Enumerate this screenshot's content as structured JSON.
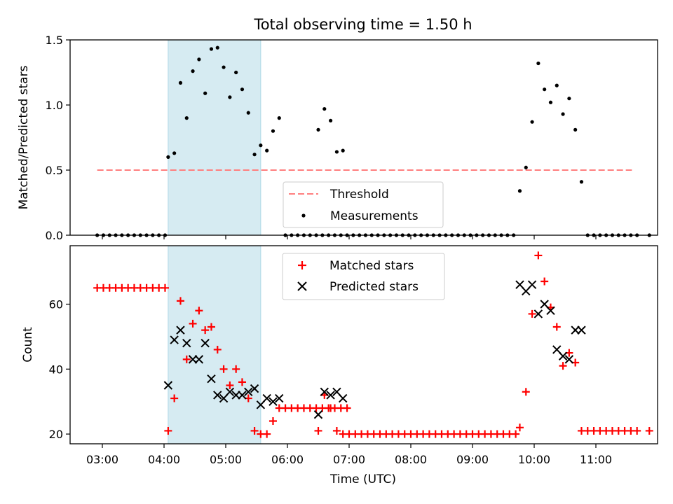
{
  "title": "Total observing time = 1.50 h",
  "colors": {
    "threshold": "#ff7f7f",
    "measurement": "#000000",
    "matched": "#ff0000",
    "predicted": "#000000",
    "highlight": "#add8e6"
  },
  "chart_data": [
    {
      "type": "scatter",
      "ylabel": "Matched/Predicted stars",
      "ylim": [
        0,
        1.5
      ],
      "yticks": [
        "0.0",
        "0.5",
        "1.0",
        "1.5"
      ],
      "highlight_span": [
        "04:04",
        "05:34"
      ],
      "threshold": {
        "value": 0.5,
        "x_range": [
          "02:55",
          "11:35"
        ]
      },
      "legend": {
        "placement": "lower-center",
        "entries": [
          "Threshold",
          "Measurements"
        ]
      },
      "series": [
        {
          "name": "Measurements",
          "marker": "dot",
          "points": [
            [
              "02:55",
              0
            ],
            [
              "03:01",
              0
            ],
            [
              "03:07",
              0
            ],
            [
              "03:13",
              0
            ],
            [
              "03:19",
              0
            ],
            [
              "03:25",
              0
            ],
            [
              "03:31",
              0
            ],
            [
              "03:37",
              0
            ],
            [
              "03:43",
              0
            ],
            [
              "03:49",
              0
            ],
            [
              "03:55",
              0
            ],
            [
              "04:01",
              0
            ],
            [
              "04:04",
              0.6
            ],
            [
              "04:10",
              0.63
            ],
            [
              "04:16",
              1.17
            ],
            [
              "04:22",
              0.9
            ],
            [
              "04:28",
              1.26
            ],
            [
              "04:34",
              1.35
            ],
            [
              "04:40",
              1.09
            ],
            [
              "04:46",
              1.43
            ],
            [
              "04:52",
              1.44
            ],
            [
              "04:58",
              1.29
            ],
            [
              "05:04",
              1.06
            ],
            [
              "05:10",
              1.25
            ],
            [
              "05:16",
              1.12
            ],
            [
              "05:22",
              0.94
            ],
            [
              "05:28",
              0.62
            ],
            [
              "05:34",
              0.69
            ],
            [
              "05:40",
              0.65
            ],
            [
              "05:46",
              0.8
            ],
            [
              "05:52",
              0.9
            ],
            [
              "05:58",
              0
            ],
            [
              "06:04",
              0
            ],
            [
              "06:10",
              0
            ],
            [
              "06:16",
              0
            ],
            [
              "06:22",
              0
            ],
            [
              "06:28",
              0
            ],
            [
              "06:34",
              0
            ],
            [
              "06:40",
              0
            ],
            [
              "06:46",
              0
            ],
            [
              "06:52",
              0
            ],
            [
              "06:58",
              0
            ],
            [
              "07:04",
              0
            ],
            [
              "07:10",
              0
            ],
            [
              "07:16",
              0
            ],
            [
              "07:22",
              0
            ],
            [
              "07:28",
              0
            ],
            [
              "07:34",
              0
            ],
            [
              "07:40",
              0
            ],
            [
              "07:46",
              0
            ],
            [
              "07:52",
              0
            ],
            [
              "07:58",
              0
            ],
            [
              "08:04",
              0
            ],
            [
              "08:10",
              0
            ],
            [
              "08:16",
              0
            ],
            [
              "08:22",
              0
            ],
            [
              "06:30",
              0.81
            ],
            [
              "06:36",
              0.97
            ],
            [
              "06:42",
              0.88
            ],
            [
              "06:48",
              0.64
            ],
            [
              "06:54",
              0.65
            ],
            [
              "08:28",
              0
            ],
            [
              "08:34",
              0
            ],
            [
              "08:40",
              0
            ],
            [
              "08:46",
              0
            ],
            [
              "08:52",
              0
            ],
            [
              "08:58",
              0
            ],
            [
              "09:04",
              0
            ],
            [
              "09:10",
              0
            ],
            [
              "09:16",
              0
            ],
            [
              "09:22",
              0
            ],
            [
              "09:28",
              0
            ],
            [
              "09:34",
              0
            ],
            [
              "09:40",
              0
            ],
            [
              "09:46",
              0.34
            ],
            [
              "09:52",
              0.52
            ],
            [
              "09:58",
              0.87
            ],
            [
              "10:04",
              1.32
            ],
            [
              "10:10",
              1.12
            ],
            [
              "10:16",
              1.02
            ],
            [
              "10:22",
              1.15
            ],
            [
              "10:28",
              0.93
            ],
            [
              "10:34",
              1.05
            ],
            [
              "10:40",
              0.81
            ],
            [
              "10:46",
              0.41
            ],
            [
              "10:52",
              0
            ],
            [
              "10:58",
              0
            ],
            [
              "11:04",
              0
            ],
            [
              "11:10",
              0
            ],
            [
              "11:16",
              0
            ],
            [
              "11:22",
              0
            ],
            [
              "11:28",
              0
            ],
            [
              "11:34",
              0
            ],
            [
              "11:40",
              0
            ],
            [
              "11:52",
              0
            ]
          ]
        }
      ]
    },
    {
      "type": "scatter",
      "xlabel": "Time (UTC)",
      "ylabel": "Count",
      "ylim": [
        17,
        78
      ],
      "yticks": [
        "20",
        "40",
        "60"
      ],
      "xticks": [
        "03:00",
        "04:00",
        "05:00",
        "06:00",
        "07:00",
        "08:00",
        "09:00",
        "10:00",
        "11:00"
      ],
      "highlight_span": [
        "04:04",
        "05:34"
      ],
      "legend": {
        "placement": "upper-center",
        "entries": [
          "Matched stars",
          "Predicted stars"
        ]
      },
      "series": [
        {
          "name": "Matched stars",
          "marker": "plus",
          "points": [
            [
              "02:55",
              65
            ],
            [
              "03:01",
              65
            ],
            [
              "03:07",
              65
            ],
            [
              "03:13",
              65
            ],
            [
              "03:19",
              65
            ],
            [
              "03:25",
              65
            ],
            [
              "03:31",
              65
            ],
            [
              "03:37",
              65
            ],
            [
              "03:43",
              65
            ],
            [
              "03:49",
              65
            ],
            [
              "03:55",
              65
            ],
            [
              "04:01",
              65
            ],
            [
              "04:04",
              21
            ],
            [
              "04:10",
              31
            ],
            [
              "04:16",
              61
            ],
            [
              "04:22",
              43
            ],
            [
              "04:28",
              54
            ],
            [
              "04:34",
              58
            ],
            [
              "04:40",
              52
            ],
            [
              "04:46",
              53
            ],
            [
              "04:52",
              46
            ],
            [
              "04:58",
              40
            ],
            [
              "05:04",
              35
            ],
            [
              "05:10",
              40
            ],
            [
              "05:16",
              36
            ],
            [
              "05:22",
              31
            ],
            [
              "05:28",
              21
            ],
            [
              "05:34",
              20
            ],
            [
              "05:40",
              20
            ],
            [
              "05:46",
              24
            ],
            [
              "05:52",
              28
            ],
            [
              "05:58",
              28
            ],
            [
              "06:04",
              28
            ],
            [
              "06:10",
              28
            ],
            [
              "06:16",
              28
            ],
            [
              "06:22",
              28
            ],
            [
              "06:28",
              28
            ],
            [
              "06:34",
              28
            ],
            [
              "06:40",
              28
            ],
            [
              "06:46",
              28
            ],
            [
              "06:52",
              28
            ],
            [
              "06:58",
              28
            ],
            [
              "06:30",
              21
            ],
            [
              "06:36",
              32
            ],
            [
              "06:42",
              28
            ],
            [
              "06:48",
              21
            ],
            [
              "06:54",
              20
            ],
            [
              "07:00",
              20
            ],
            [
              "07:06",
              20
            ],
            [
              "07:12",
              20
            ],
            [
              "07:18",
              20
            ],
            [
              "07:24",
              20
            ],
            [
              "07:30",
              20
            ],
            [
              "07:36",
              20
            ],
            [
              "07:42",
              20
            ],
            [
              "07:48",
              20
            ],
            [
              "07:54",
              20
            ],
            [
              "08:00",
              20
            ],
            [
              "08:06",
              20
            ],
            [
              "08:12",
              20
            ],
            [
              "08:18",
              20
            ],
            [
              "08:24",
              20
            ],
            [
              "08:30",
              20
            ],
            [
              "08:36",
              20
            ],
            [
              "08:42",
              20
            ],
            [
              "08:48",
              20
            ],
            [
              "08:54",
              20
            ],
            [
              "09:00",
              20
            ],
            [
              "09:06",
              20
            ],
            [
              "09:12",
              20
            ],
            [
              "09:18",
              20
            ],
            [
              "09:24",
              20
            ],
            [
              "09:30",
              20
            ],
            [
              "09:36",
              20
            ],
            [
              "09:42",
              20
            ],
            [
              "09:46",
              22
            ],
            [
              "09:52",
              33
            ],
            [
              "09:58",
              57
            ],
            [
              "10:04",
              75
            ],
            [
              "10:10",
              67
            ],
            [
              "10:16",
              59
            ],
            [
              "10:22",
              53
            ],
            [
              "10:28",
              41
            ],
            [
              "10:34",
              45
            ],
            [
              "10:40",
              42
            ],
            [
              "10:46",
              21
            ],
            [
              "10:52",
              21
            ],
            [
              "10:58",
              21
            ],
            [
              "11:04",
              21
            ],
            [
              "11:10",
              21
            ],
            [
              "11:16",
              21
            ],
            [
              "11:22",
              21
            ],
            [
              "11:28",
              21
            ],
            [
              "11:34",
              21
            ],
            [
              "11:40",
              21
            ],
            [
              "11:52",
              21
            ]
          ]
        },
        {
          "name": "Predicted stars",
          "marker": "x",
          "points": [
            [
              "04:04",
              35
            ],
            [
              "04:10",
              49
            ],
            [
              "04:16",
              52
            ],
            [
              "04:22",
              48
            ],
            [
              "04:28",
              43
            ],
            [
              "04:34",
              43
            ],
            [
              "04:40",
              48
            ],
            [
              "04:46",
              37
            ],
            [
              "04:52",
              32
            ],
            [
              "04:58",
              31
            ],
            [
              "05:04",
              33
            ],
            [
              "05:10",
              32
            ],
            [
              "05:16",
              32
            ],
            [
              "05:22",
              33
            ],
            [
              "05:28",
              34
            ],
            [
              "05:34",
              29
            ],
            [
              "05:40",
              31
            ],
            [
              "05:46",
              30
            ],
            [
              "05:52",
              31
            ],
            [
              "06:30",
              26
            ],
            [
              "06:36",
              33
            ],
            [
              "06:42",
              32
            ],
            [
              "06:48",
              33
            ],
            [
              "06:54",
              31
            ],
            [
              "09:46",
              66
            ],
            [
              "09:52",
              64
            ],
            [
              "09:58",
              66
            ],
            [
              "10:04",
              57
            ],
            [
              "10:10",
              60
            ],
            [
              "10:16",
              58
            ],
            [
              "10:22",
              46
            ],
            [
              "10:28",
              44
            ],
            [
              "10:34",
              43
            ],
            [
              "10:40",
              52
            ],
            [
              "10:46",
              52
            ]
          ]
        }
      ]
    }
  ]
}
